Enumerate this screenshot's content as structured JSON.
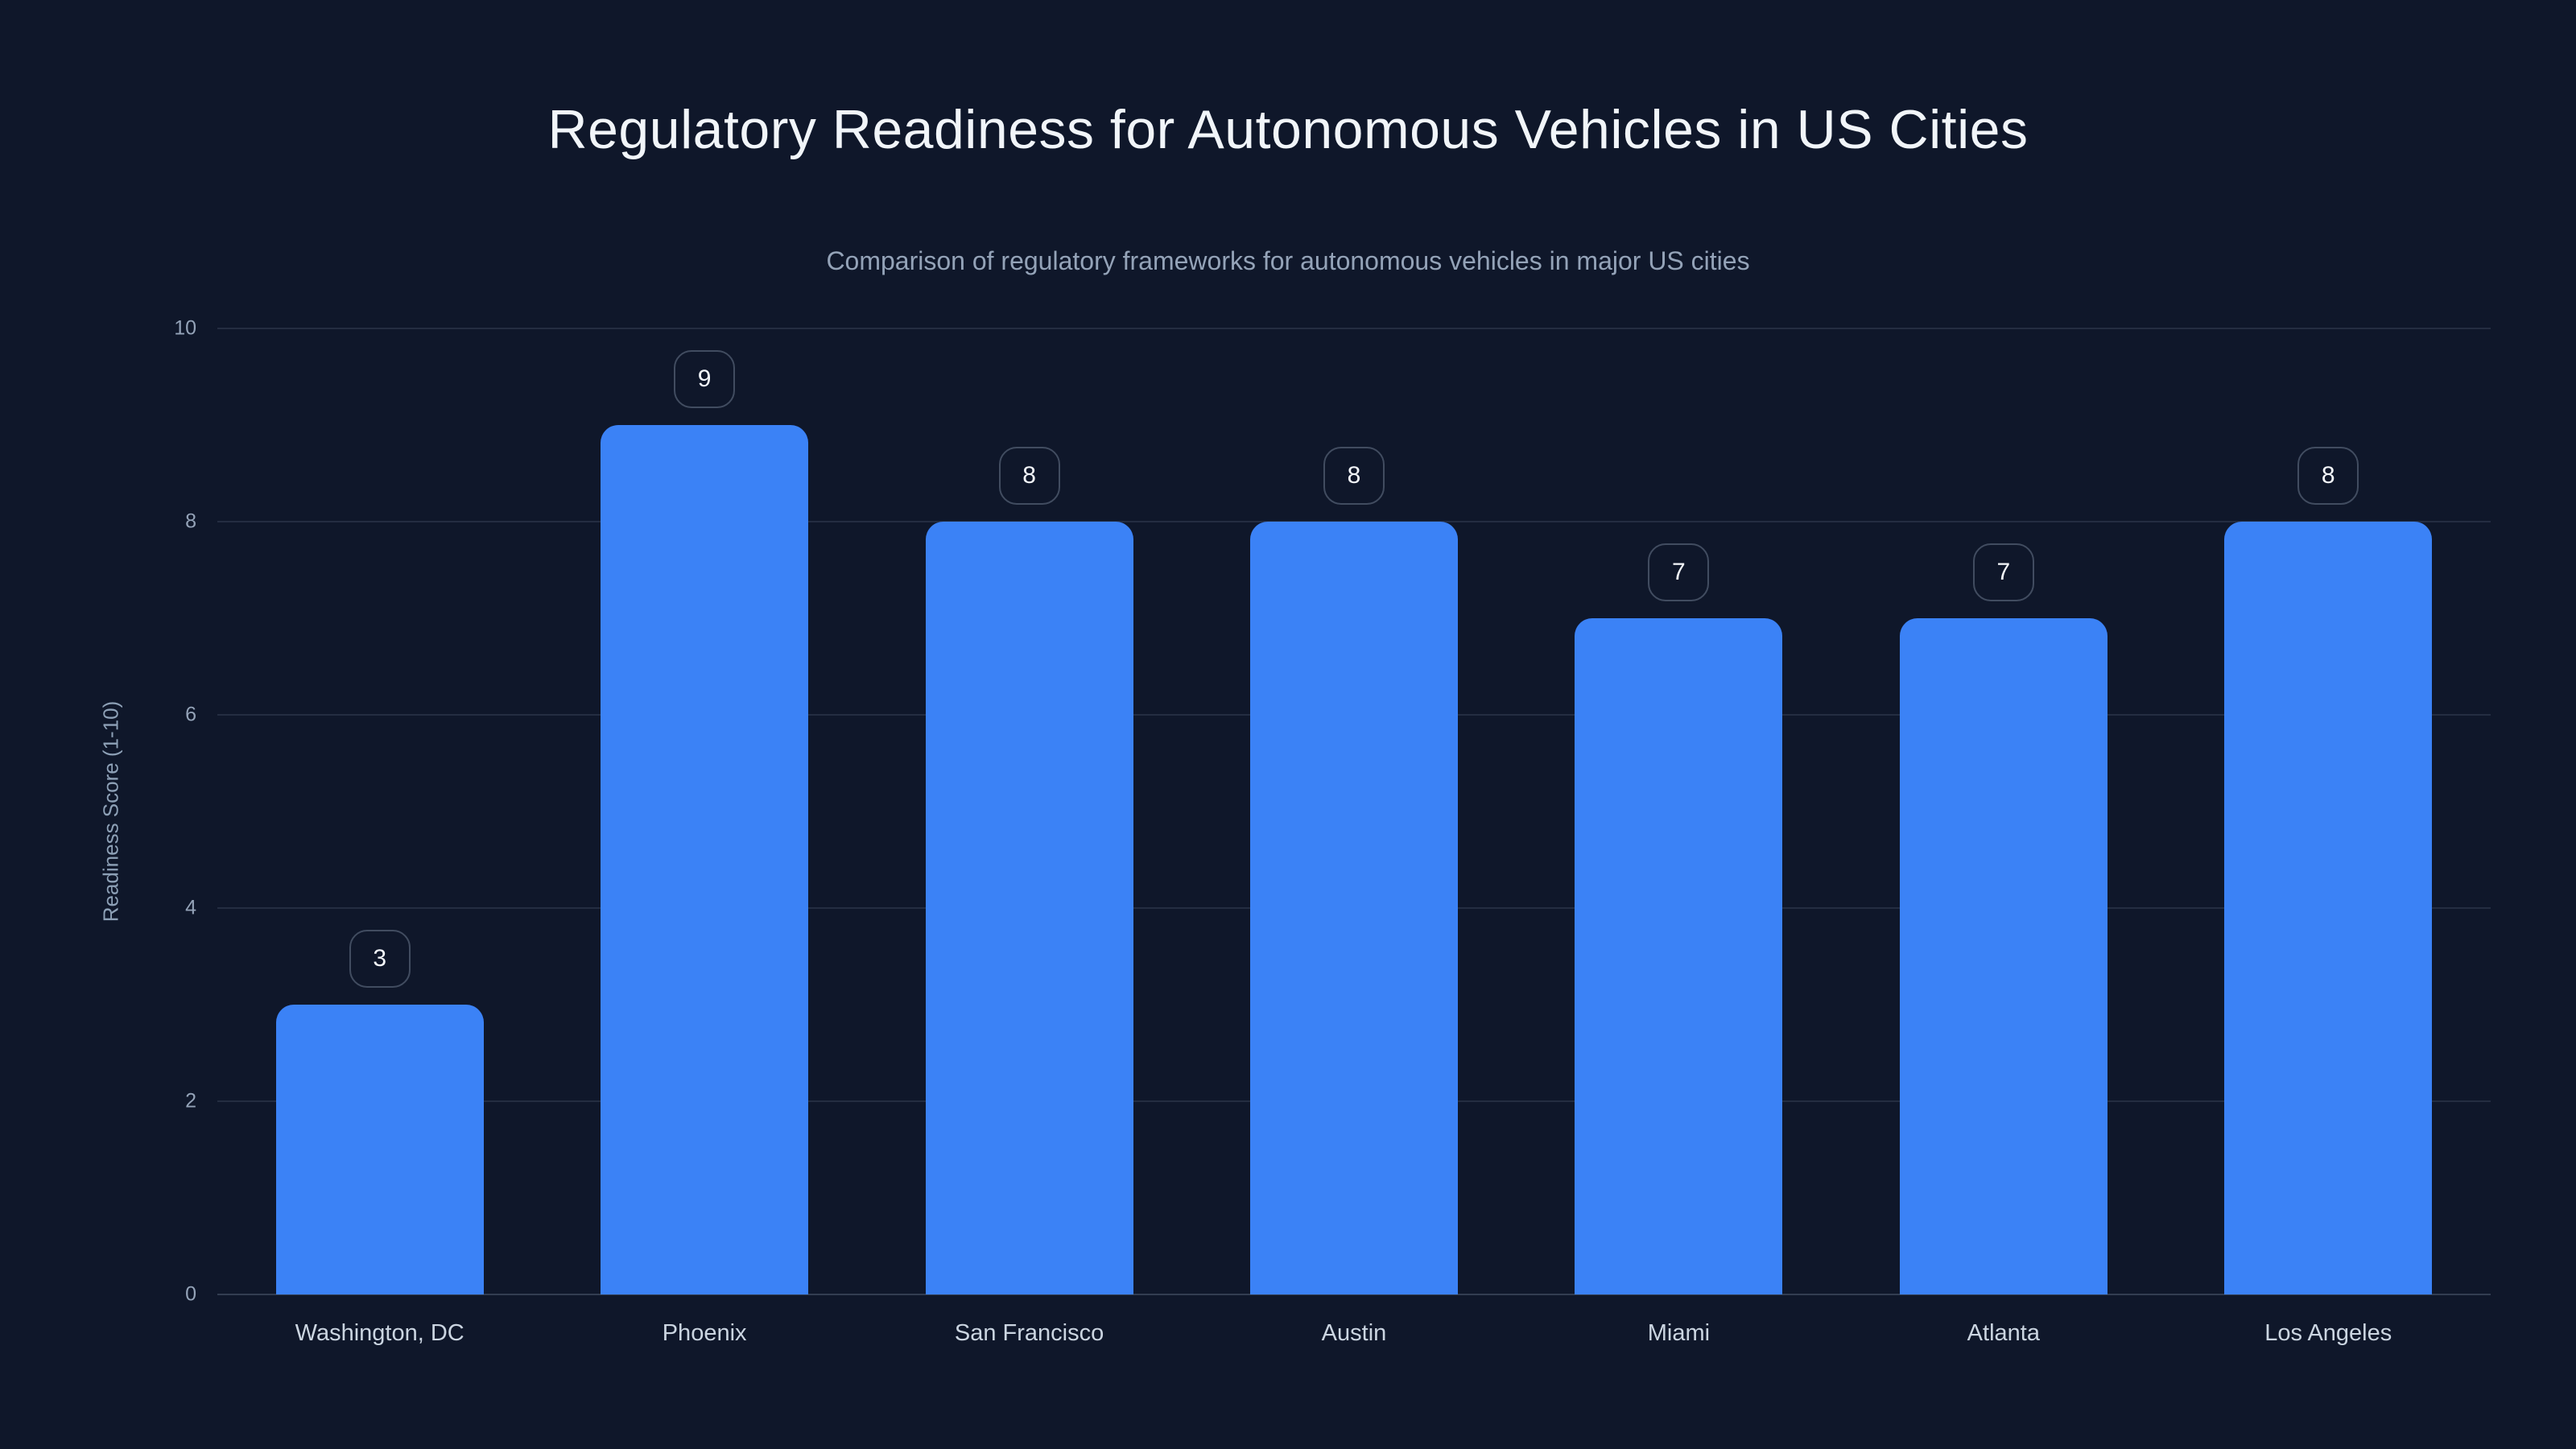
{
  "chart_data": {
    "type": "bar",
    "title": "Regulatory Readiness for Autonomous Vehicles in US Cities",
    "subtitle": "Comparison of regulatory frameworks for autonomous vehicles in major US cities",
    "categories": [
      "Washington, DC",
      "Phoenix",
      "San Francisco",
      "Austin",
      "Miami",
      "Atlanta",
      "Los Angeles"
    ],
    "values": [
      3,
      9,
      8,
      8,
      7,
      7,
      8
    ],
    "xlabel": "",
    "ylabel": "Readiness Score (1-10)",
    "ylim": [
      0,
      10
    ],
    "yticks": [
      0,
      2,
      4,
      6,
      8,
      10
    ],
    "grid": true,
    "legend": false,
    "value_labels_shown": true
  },
  "colors": {
    "bg": "#0f172a",
    "bar": "#3b82f6",
    "grid": "rgba(148,163,184,0.16)",
    "baseline": "rgba(148,163,184,0.28)",
    "title": "#f1f5f9",
    "subtitle": "#94a3b8",
    "ytick": "#94a3b8",
    "xlabel": "#cbd5e1",
    "ylabeltxt": "#8da0b6",
    "badge-border": "rgba(148,163,184,0.38)",
    "badge-text": "#f4f7fb"
  }
}
